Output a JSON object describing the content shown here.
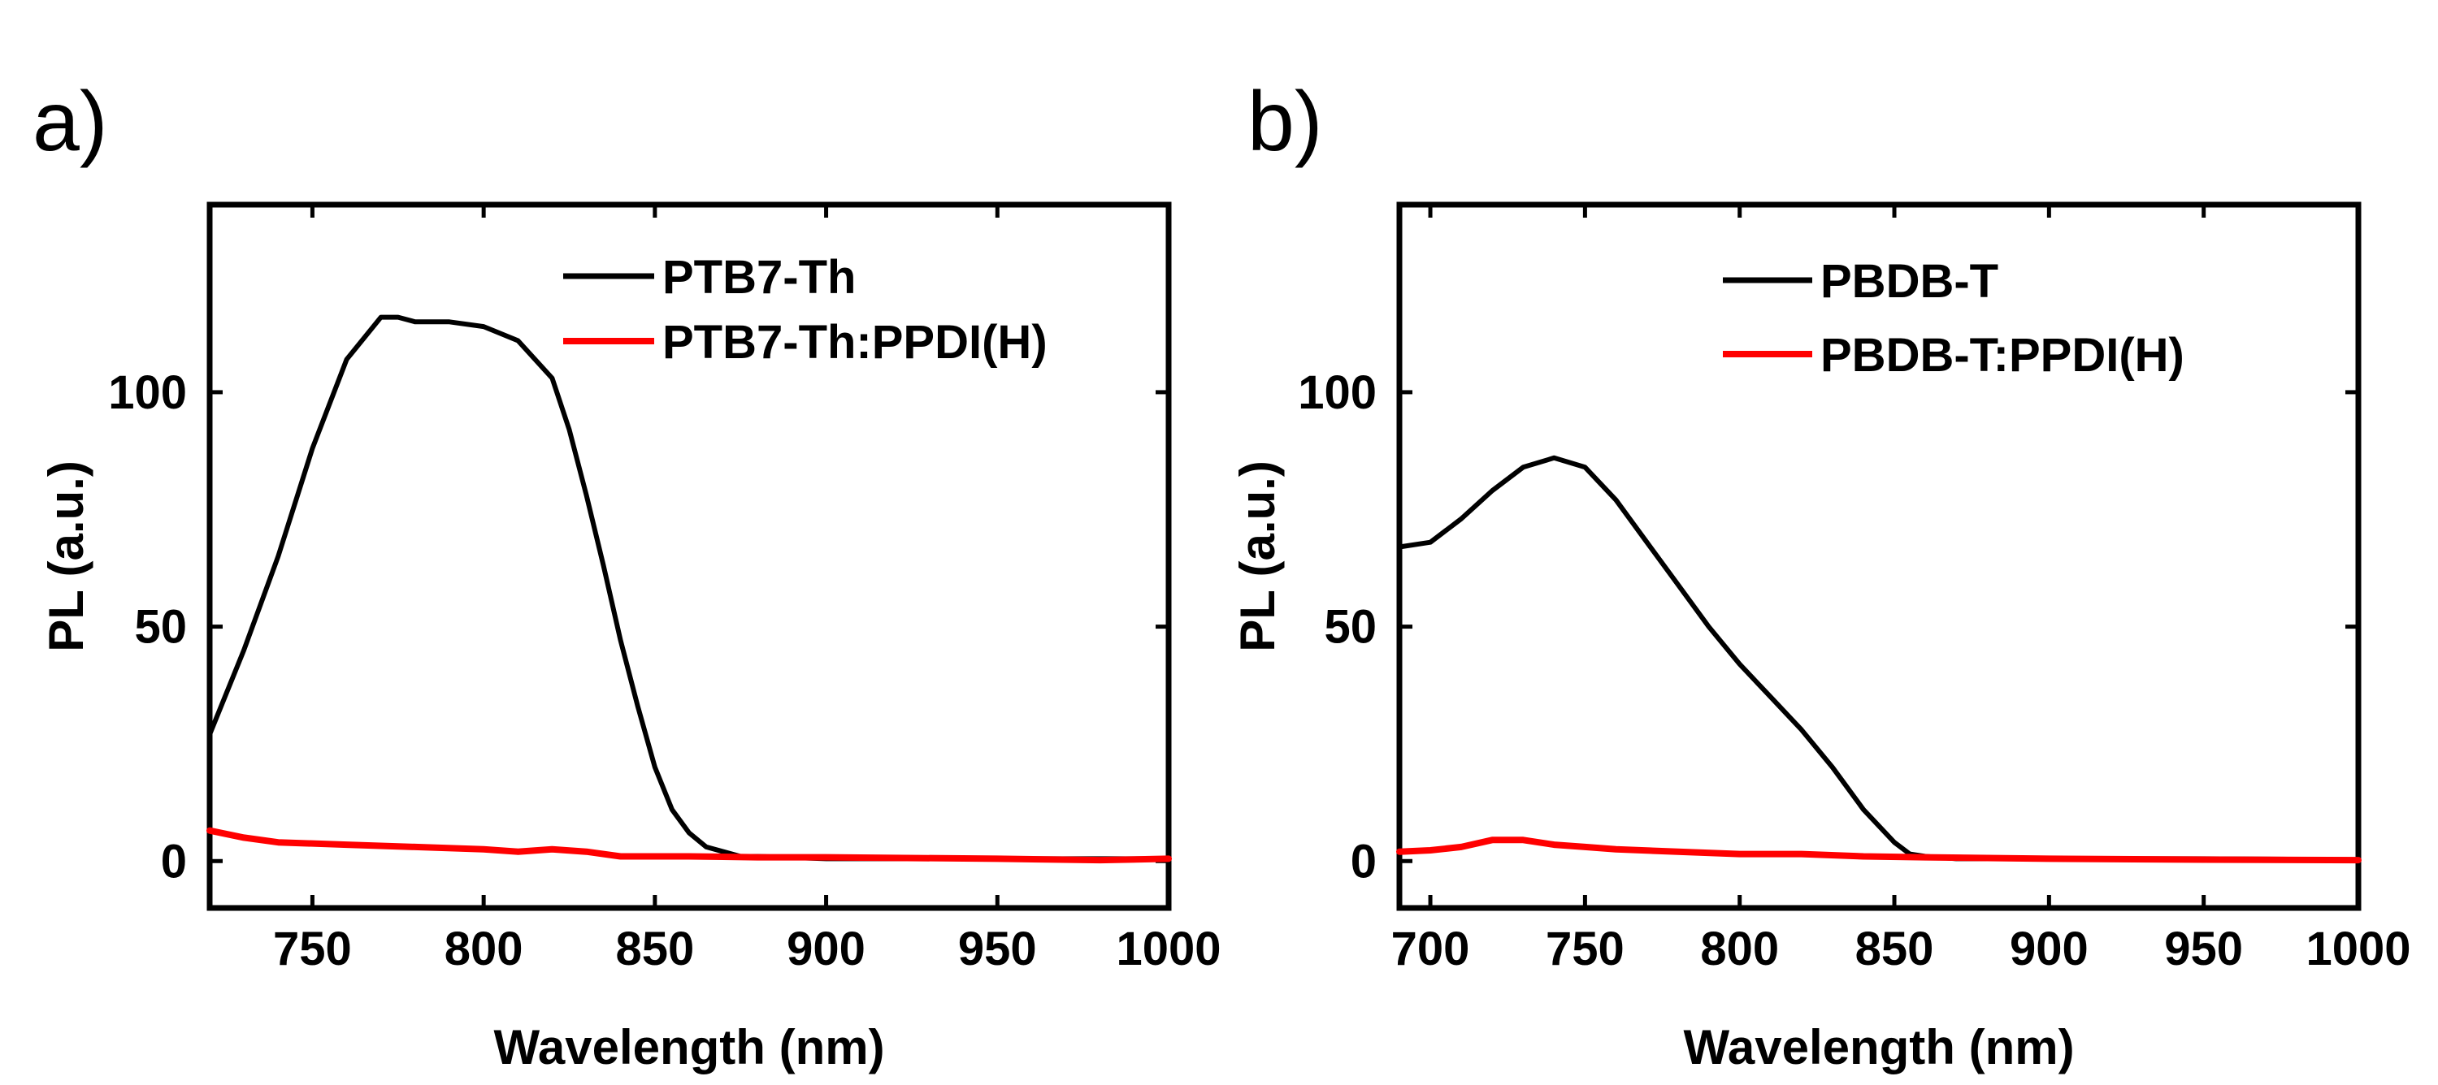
{
  "chart_data": [
    {
      "type": "line",
      "panel_label": "a)",
      "xlabel": "Wavelength (nm)",
      "ylabel": "PL (a.u.)",
      "xlim": [
        720,
        1000
      ],
      "ylim": [
        -10,
        140
      ],
      "xticks": [
        750,
        800,
        850,
        900,
        950,
        1000
      ],
      "yticks": [
        0,
        50,
        100
      ],
      "legend_position": "top-right",
      "series": [
        {
          "name": "PTB7-Th",
          "color": "#000000",
          "x": [
            720,
            730,
            740,
            750,
            760,
            770,
            775,
            780,
            790,
            800,
            810,
            820,
            825,
            830,
            835,
            840,
            845,
            850,
            855,
            860,
            865,
            870,
            875,
            880,
            900,
            950,
            1000
          ],
          "y": [
            27,
            45,
            65,
            88,
            107,
            116,
            116,
            115,
            115,
            114,
            111,
            103,
            92,
            78,
            63,
            47,
            33,
            20,
            11,
            6,
            3,
            2,
            1,
            1,
            0.5,
            0.5,
            0.5
          ]
        },
        {
          "name": "PTB7-Th:PPDI(H)",
          "color": "#ff0000",
          "x": [
            720,
            730,
            740,
            760,
            780,
            800,
            810,
            820,
            830,
            840,
            860,
            880,
            900,
            950,
            980,
            1000
          ],
          "y": [
            6.5,
            5,
            4,
            3.5,
            3,
            2.5,
            2,
            2.5,
            2,
            1,
            1,
            0.8,
            0.8,
            0.5,
            0.2,
            0.5
          ]
        }
      ]
    },
    {
      "type": "line",
      "panel_label": "b)",
      "xlabel": "Wavelength (nm)",
      "ylabel": "PL (a.u.)",
      "xlim": [
        690,
        1000
      ],
      "ylim": [
        -10,
        140
      ],
      "xticks": [
        700,
        750,
        800,
        850,
        900,
        950,
        1000
      ],
      "yticks": [
        0,
        50,
        100
      ],
      "legend_position": "top-right",
      "series": [
        {
          "name": "PBDB-T",
          "color": "#000000",
          "x": [
            690,
            700,
            710,
            720,
            730,
            740,
            750,
            760,
            770,
            780,
            790,
            800,
            810,
            820,
            830,
            840,
            850,
            855,
            860,
            870,
            900,
            950,
            1000
          ],
          "y": [
            67,
            68,
            73,
            79,
            84,
            86,
            84,
            77,
            68,
            59,
            50,
            42,
            35,
            28,
            20,
            11,
            4,
            1.5,
            1,
            0.5,
            0.5,
            0.5,
            0.3
          ]
        },
        {
          "name": "PBDB-T:PPDI(H)",
          "color": "#ff0000",
          "x": [
            690,
            700,
            710,
            720,
            730,
            740,
            750,
            760,
            780,
            800,
            820,
            840,
            860,
            900,
            950,
            1000
          ],
          "y": [
            2,
            2.3,
            3,
            4.5,
            4.5,
            3.5,
            3,
            2.5,
            2,
            1.5,
            1.5,
            1,
            0.8,
            0.5,
            0.3,
            0.2
          ]
        }
      ]
    }
  ]
}
